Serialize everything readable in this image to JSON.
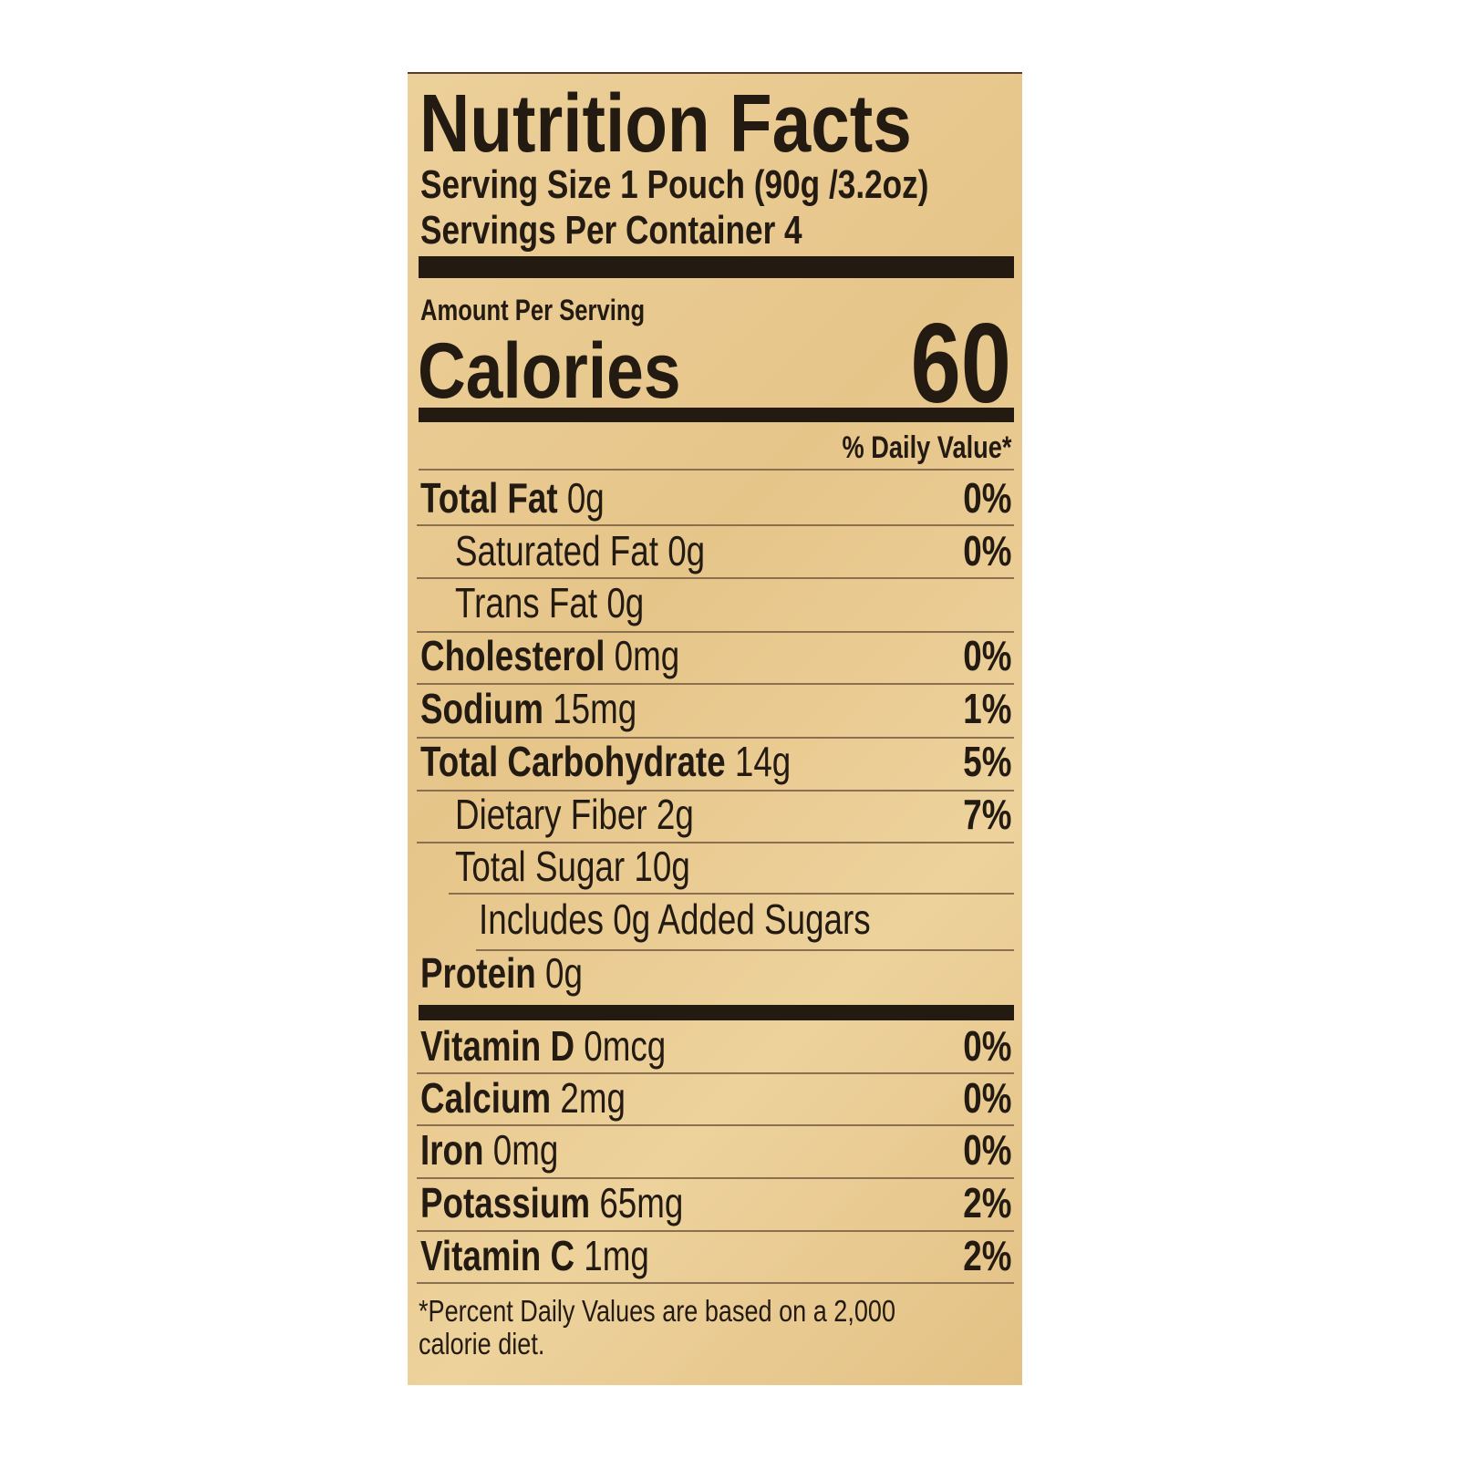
{
  "title": "Nutrition Facts",
  "serving_size": "Serving Size 1 Pouch (90g /3.2oz)",
  "servings_per_container": "Servings Per Container 4",
  "amount_per_serving": "Amount Per Serving",
  "calories_label": "Calories",
  "calories_value": "60",
  "daily_value_header": "% Daily Value*",
  "nutrients": [
    {
      "name": "Total Fat",
      "amount": "0g",
      "dv": "0%"
    },
    {
      "name": "Saturated Fat 0g",
      "amount": "",
      "dv": "0%"
    },
    {
      "name": "Trans Fat 0g",
      "amount": "",
      "dv": ""
    },
    {
      "name": "Cholesterol",
      "amount": "0mg",
      "dv": "0%"
    },
    {
      "name": "Sodium",
      "amount": "15mg",
      "dv": "1%"
    },
    {
      "name": "Total Carbohydrate",
      "amount": "14g",
      "dv": "5%"
    },
    {
      "name": "Dietary Fiber 2g",
      "amount": "",
      "dv": "7%"
    },
    {
      "name": "Total Sugar 10g",
      "amount": "",
      "dv": ""
    },
    {
      "name": "Includes 0g Added Sugars",
      "amount": "",
      "dv": ""
    },
    {
      "name": "Protein",
      "amount": "0g",
      "dv": ""
    }
  ],
  "vitamins": [
    {
      "name": "Vitamin D",
      "amount": "0mcg",
      "dv": "0%"
    },
    {
      "name": "Calcium",
      "amount": "2mg",
      "dv": "0%"
    },
    {
      "name": "Iron",
      "amount": "0mg",
      "dv": "0%"
    },
    {
      "name": "Potassium",
      "amount": "65mg",
      "dv": "2%"
    },
    {
      "name": "Vitamin C",
      "amount": "1mg",
      "dv": "2%"
    }
  ],
  "footnote_line1": "*Percent Daily Values are based on a 2,000",
  "footnote_line2": "calorie diet.",
  "colors": {
    "background": "#e8c98c",
    "ink": "#231a12"
  }
}
